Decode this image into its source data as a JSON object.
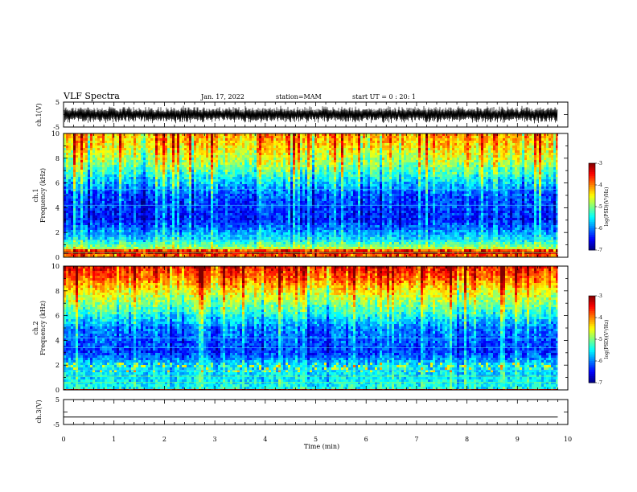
{
  "header": {
    "title": "VLF Spectra",
    "date": "Jan. 17, 2022",
    "station": "station=MAM",
    "start": "start UT = 0 : 20: 1"
  },
  "chart_data": [
    {
      "type": "line",
      "panel": "ch1-waveform",
      "ylabel": "ch.1(V)",
      "ylim": [
        -5,
        5
      ],
      "yticks": [
        "5",
        "-5"
      ],
      "xlim": [
        0,
        10
      ],
      "data_end_min": 9.8,
      "note": "dense oscillating signal roughly between -3 and +3 V across the full time range"
    },
    {
      "type": "heatmap",
      "panel": "ch1-spectrogram",
      "ylabel_line1": "ch.1",
      "ylabel_line2": "Frequency (kHz)",
      "ylim": [
        0,
        10
      ],
      "yticks": [
        "0",
        "2",
        "4",
        "6",
        "8",
        "10"
      ],
      "xlim": [
        0,
        10
      ],
      "data_end_min": 9.8,
      "colorbar": {
        "label": "log(PSD)(V²/Hz)",
        "range": [
          -7,
          -3
        ],
        "ticks": [
          "-3",
          "-4",
          "-5",
          "-6",
          "-7"
        ]
      },
      "profile_log_psd": [
        {
          "f": 0.0,
          "v": -5.2
        },
        {
          "f": 0.3,
          "v": -3.4
        },
        {
          "f": 0.8,
          "v": -4.9
        },
        {
          "f": 1.5,
          "v": -5.6
        },
        {
          "f": 3.0,
          "v": -6.4
        },
        {
          "f": 5.0,
          "v": -6.2
        },
        {
          "f": 6.2,
          "v": -5.6
        },
        {
          "f": 7.5,
          "v": -4.9
        },
        {
          "f": 9.0,
          "v": -4.4
        },
        {
          "f": 10.0,
          "v": -4.1
        }
      ]
    },
    {
      "type": "heatmap",
      "panel": "ch2-spectrogram",
      "ylabel_line1": "ch.2",
      "ylabel_line2": "Frequency (kHz)",
      "ylim": [
        0,
        10
      ],
      "yticks": [
        "0",
        "2",
        "4",
        "6",
        "8",
        "10"
      ],
      "xlim": [
        0,
        10
      ],
      "data_end_min": 9.8,
      "colorbar": {
        "label": "log(PSD)(V²/Hz)",
        "range": [
          -7,
          -3
        ],
        "ticks": [
          "-3",
          "-4",
          "-5",
          "-6",
          "-7"
        ]
      },
      "profile_log_psd": [
        {
          "f": 0.0,
          "v": -5.4
        },
        {
          "f": 1.0,
          "v": -5.6
        },
        {
          "f": 2.0,
          "v": -5.6
        },
        {
          "f": 3.0,
          "v": -6.3
        },
        {
          "f": 5.0,
          "v": -6.0
        },
        {
          "f": 6.5,
          "v": -5.2
        },
        {
          "f": 8.0,
          "v": -4.5
        },
        {
          "f": 9.0,
          "v": -3.9
        },
        {
          "f": 10.0,
          "v": -3.5
        }
      ]
    },
    {
      "type": "line",
      "panel": "ch3-waveform",
      "ylabel": "ch.3(V)",
      "ylim": [
        -5,
        5
      ],
      "yticks": [
        "5",
        "-5"
      ],
      "xlim": [
        0,
        10
      ],
      "data_end_min": 9.8,
      "level": -2,
      "xlabel": "Time (min)",
      "xticks": [
        "0",
        "1",
        "2",
        "3",
        "4",
        "5",
        "6",
        "7",
        "8",
        "9",
        "10"
      ]
    }
  ]
}
